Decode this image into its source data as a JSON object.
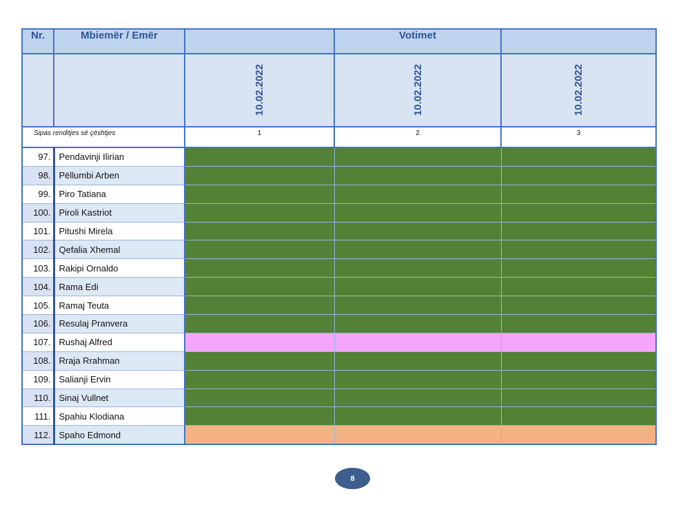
{
  "header": {
    "nr": "Nr.",
    "name": "Mbiemër / Emër",
    "votes_title": "Votimet"
  },
  "dates": [
    "10.02.2022",
    "10.02.2022",
    "10.02.2022"
  ],
  "subheader": {
    "label": "Sipas renditjes së çështjes",
    "numbers": [
      "1",
      "2",
      "3"
    ]
  },
  "colors": {
    "po": "#538135",
    "abstain": "#f4a6fb",
    "absent": "#f4b183"
  },
  "rows": [
    {
      "nr": "97.",
      "name": "Pendavinji Ilirian",
      "vote": "po"
    },
    {
      "nr": "98.",
      "name": "Pëllumbi Arben",
      "vote": "po"
    },
    {
      "nr": "99.",
      "name": "Piro Tatiana",
      "vote": "po"
    },
    {
      "nr": "100.",
      "name": "Piroli Kastriot",
      "vote": "po"
    },
    {
      "nr": "101.",
      "name": "Pitushi Mirela",
      "vote": "po"
    },
    {
      "nr": "102.",
      "name": "Qefalia Xhemal",
      "vote": "po"
    },
    {
      "nr": "103.",
      "name": "Rakipi Ornaldo",
      "vote": "po"
    },
    {
      "nr": "104.",
      "name": "Rama Edi",
      "vote": "po"
    },
    {
      "nr": "105.",
      "name": "Ramaj Teuta",
      "vote": "po"
    },
    {
      "nr": "106.",
      "name": "Resulaj Pranvera",
      "vote": "po"
    },
    {
      "nr": "107.",
      "name": "Rushaj Alfred",
      "vote": "abstain"
    },
    {
      "nr": "108.",
      "name": "Rraja Rrahman",
      "vote": "po"
    },
    {
      "nr": "109.",
      "name": "Salianji Ervin",
      "vote": "po"
    },
    {
      "nr": "110.",
      "name": "Sinaj Vullnet",
      "vote": "po"
    },
    {
      "nr": "111.",
      "name": "Spahiu Klodiana",
      "vote": "po"
    },
    {
      "nr": "112.",
      "name": "Spaho Edmond",
      "vote": "absent"
    }
  ],
  "page_number": "8"
}
